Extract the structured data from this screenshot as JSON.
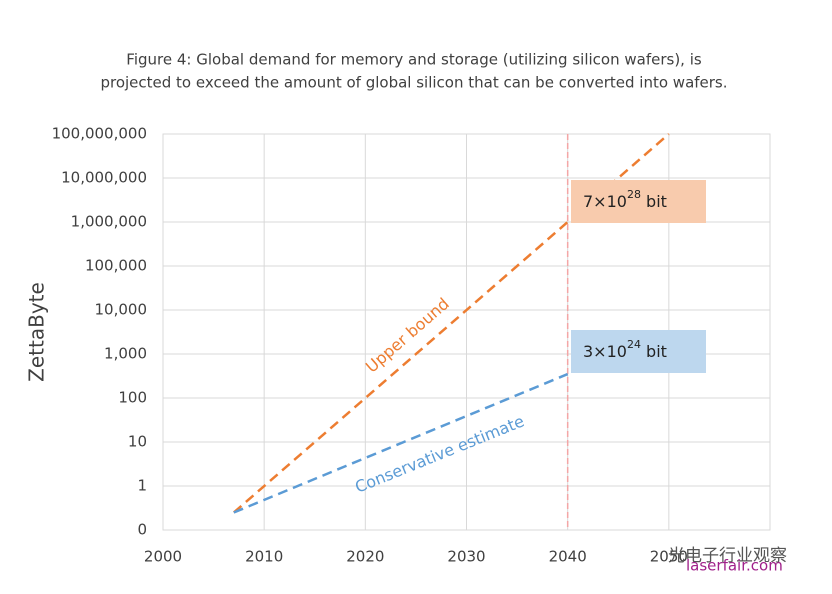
{
  "chart_data": {
    "type": "line",
    "title": [
      "Figure 4: Global demand for memory and storage (utilizing silicon wafers), is",
      "projected to exceed the amount of global silicon that can be converted into wafers."
    ],
    "y_label": "ZettaByte",
    "log_y": true,
    "grid": true,
    "xlim": [
      2000,
      2060
    ],
    "xticks": [
      2000,
      2010,
      2020,
      2030,
      2040,
      2050
    ],
    "ylim": [
      0.1,
      100000000
    ],
    "yticks": [
      {
        "value": 0.1,
        "label": "0"
      },
      1,
      10,
      100,
      {
        "value": 1000,
        "label": "1,000"
      },
      {
        "value": 10000,
        "label": "10,000"
      },
      {
        "value": 100000,
        "label": "100,000"
      },
      {
        "value": 1000000,
        "label": "1,000,000"
      },
      {
        "value": 10000000,
        "label": "10,000,000"
      },
      {
        "value": 100000000,
        "label": "100,000,000"
      }
    ],
    "series": [
      {
        "name": "Upper bound",
        "color": "#ed7d31",
        "x": [
          2007,
          2050
        ],
        "values": [
          0.25,
          100000000
        ]
      },
      {
        "name": "Conservative estimate",
        "color": "#5b9bd5",
        "x": [
          2007,
          2040
        ],
        "values": [
          0.25,
          350
        ]
      }
    ],
    "vline": {
      "x": 2040,
      "color": "#f4a6a6"
    },
    "boxes": [
      {
        "parts": [
          "7×10",
          "28",
          " bit"
        ],
        "color": "#f8cbad"
      },
      {
        "parts": [
          "3×10",
          "24",
          " bit"
        ],
        "color": "#bdd7ee"
      }
    ]
  },
  "watermark": [
    "光电子行业观察",
    "laserfair.com"
  ]
}
